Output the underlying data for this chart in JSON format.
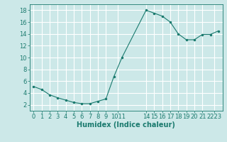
{
  "x": [
    0,
    1,
    2,
    3,
    4,
    5,
    6,
    7,
    8,
    9,
    10,
    11,
    14,
    15,
    16,
    17,
    18,
    19,
    20,
    21,
    22,
    23
  ],
  "y": [
    5.1,
    4.6,
    3.7,
    3.2,
    2.8,
    2.4,
    2.2,
    2.2,
    2.6,
    3.0,
    6.8,
    10.0,
    18.0,
    17.5,
    17.0,
    16.0,
    14.0,
    13.0,
    13.0,
    13.9,
    13.9,
    14.5
  ],
  "line_color": "#1a7a6e",
  "marker": ".",
  "marker_size": 3,
  "bg_color": "#cce8e8",
  "grid_color": "#ffffff",
  "tick_color": "#1a7a6e",
  "xlabel": "Humidex (Indice chaleur)",
  "xlabel_fontsize": 7,
  "tick_fontsize": 6,
  "xlim": [
    -0.5,
    23.5
  ],
  "ylim": [
    1.0,
    19.0
  ],
  "yticks": [
    2,
    4,
    6,
    8,
    10,
    12,
    14,
    16,
    18
  ],
  "xtick_positions": [
    0,
    1,
    2,
    3,
    4,
    5,
    6,
    7,
    8,
    9,
    10.5,
    14,
    15,
    16,
    17,
    18,
    19,
    20,
    21,
    22.5
  ],
  "xtick_labels": [
    "0",
    "1",
    "2",
    "3",
    "4",
    "5",
    "6",
    "7",
    "8",
    "9",
    "1011",
    "14",
    "15",
    "16",
    "17",
    "18",
    "19",
    "20",
    "21",
    "2223"
  ]
}
